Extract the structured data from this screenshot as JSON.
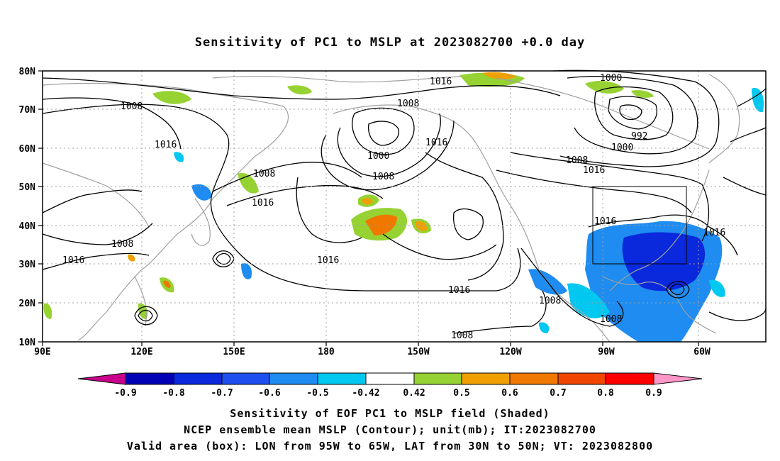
{
  "title": "Sensitivity of PC1 to MSLP at 2023082700 +0.0 day",
  "map": {
    "lon_labels": [
      "90E",
      "120E",
      "150E",
      "180",
      "150W",
      "120W",
      "90W",
      "60W"
    ],
    "lat_labels": [
      "80N",
      "70N",
      "60N",
      "50N",
      "40N",
      "30N",
      "20N",
      "10N"
    ],
    "contour_labels": [
      "1016",
      "1008",
      "1016",
      "1008",
      "1000",
      "1008",
      "1016",
      "1000",
      "992",
      "1000",
      "1008",
      "1016",
      "1008",
      "1016",
      "1016",
      "1016",
      "1008",
      "1016",
      "1016",
      "1016",
      "1008",
      "1008",
      "1008"
    ],
    "box": {
      "lon_west": "95W",
      "lon_east": "65W",
      "lat_south": "30N",
      "lat_north": "50N"
    },
    "colors": {
      "contour": "#000000",
      "coast": "#a0a0a0",
      "grid": "#a0a0a0"
    }
  },
  "colorbar": {
    "labels": [
      "-0.9",
      "-0.8",
      "-0.7",
      "-0.6",
      "-0.5",
      "-0.42",
      "0.42",
      "0.5",
      "0.6",
      "0.7",
      "0.8",
      "0.9"
    ],
    "colors": [
      "#c8008c",
      "#0000b4",
      "#0a28dc",
      "#1e50f0",
      "#1e8cf0",
      "#00c8f0",
      "#ffffff",
      "#96d232",
      "#f0a000",
      "#f07800",
      "#f04600",
      "#ff0000",
      "#ff96c8"
    ]
  },
  "captions": {
    "line1": "Sensitivity of EOF PC1 to MSLP field (Shaded)",
    "line2": "NCEP ensemble mean MSLP (Contour); unit(mb); IT:2023082700",
    "line3": "Valid area (box): LON from 95W to 65W, LAT from 30N to 50N; VT: 2023082800"
  }
}
